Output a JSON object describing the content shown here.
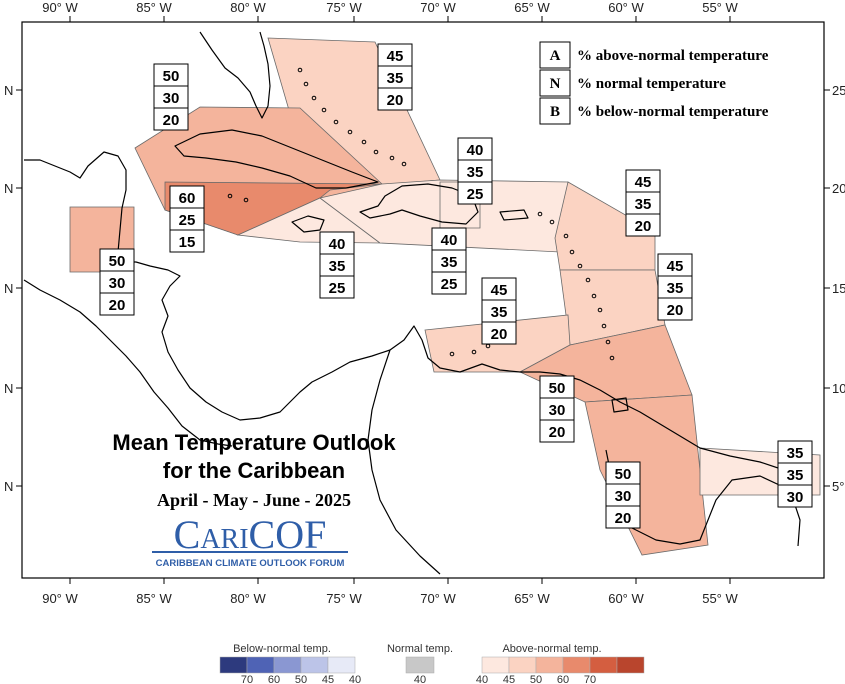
{
  "axes": {
    "lon_labels": [
      "90° W",
      "85° W",
      "80° W",
      "75° W",
      "70° W",
      "65° W",
      "60° W",
      "55° W"
    ],
    "lat_labels_left": [
      "N",
      "N",
      "N",
      "N",
      "N"
    ],
    "lat_labels_right": [
      "25",
      "20",
      "15",
      "10",
      "5°"
    ]
  },
  "legend_box": {
    "items": [
      {
        "key": "A",
        "label": "% above-normal temperature"
      },
      {
        "key": "N",
        "label": "% normal temperature"
      },
      {
        "key": "B",
        "label": "% below-normal temperature"
      }
    ]
  },
  "title": {
    "line1": "Mean Temperature Outlook",
    "line2": "for the Caribbean",
    "season": "April - May - June - 2025"
  },
  "logo": {
    "name": "CariCOF",
    "tagline": "CARIBBEAN CLIMATE OUTLOOK FORUM"
  },
  "colors": {
    "above_40": "#fde8df",
    "above_45": "#fbd3c2",
    "above_50": "#f4b49c",
    "above_60": "#e88a6c",
    "above_70": "#d45e40",
    "above_80": "#b9452d",
    "below_70": "#2d3a7e",
    "below_60": "#4f63b5",
    "below_50": "#8a97d2",
    "below_45": "#bcc4e8",
    "below_40": "#e7eaf7",
    "normal_40": "#c8c8c8"
  },
  "regions": [
    {
      "name": "bahamas",
      "probs": [
        "45",
        "35",
        "20"
      ]
    },
    {
      "name": "cuba",
      "probs": [
        "50",
        "30",
        "20"
      ]
    },
    {
      "name": "cayman-jamaica",
      "probs": [
        "60",
        "25",
        "15"
      ]
    },
    {
      "name": "belize",
      "probs": [
        "50",
        "30",
        "20"
      ]
    },
    {
      "name": "haiti-south",
      "probs": [
        "40",
        "35",
        "25"
      ]
    },
    {
      "name": "hispaniola-north",
      "probs": [
        "40",
        "35",
        "25"
      ]
    },
    {
      "name": "puerto-rico",
      "probs": [
        "40",
        "35",
        "25"
      ]
    },
    {
      "name": "northern-leewards",
      "probs": [
        "45",
        "35",
        "20"
      ]
    },
    {
      "name": "windwards",
      "probs": [
        "45",
        "35",
        "20"
      ]
    },
    {
      "name": "abc-islands",
      "probs": [
        "45",
        "35",
        "20"
      ]
    },
    {
      "name": "trinidad-tobago",
      "probs": [
        "50",
        "30",
        "20"
      ]
    },
    {
      "name": "guyana",
      "probs": [
        "50",
        "30",
        "20"
      ]
    },
    {
      "name": "french-guiana",
      "probs": [
        "35",
        "35",
        "30"
      ]
    }
  ],
  "colorbar": {
    "below_title": "Below-normal temp.",
    "normal_title": "Normal temp.",
    "above_title": "Above-normal temp.",
    "below_ticks": [
      "70",
      "60",
      "50",
      "45",
      "40"
    ],
    "normal_ticks": [
      "40"
    ],
    "above_ticks": [
      "40",
      "45",
      "50",
      "60",
      "70"
    ]
  }
}
